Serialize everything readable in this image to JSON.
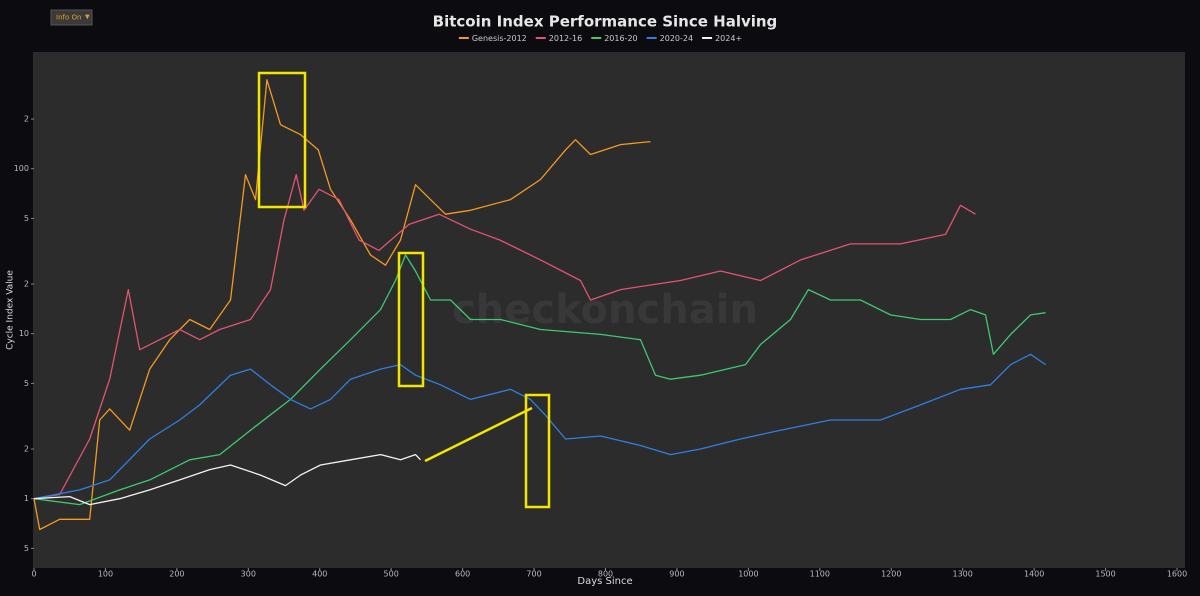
{
  "button": "Info On",
  "chart_data": {
    "type": "line",
    "title": "Bitcoin Index Performance Since Halving",
    "watermark": "checkonchain",
    "xlabel": "Days Since",
    "ylabel": "Cycle Index Value",
    "yscale": "log",
    "xlim": [
      0,
      1600
    ],
    "xticks": [
      0,
      100,
      200,
      300,
      400,
      500,
      600,
      700,
      800,
      900,
      1000,
      1100,
      1200,
      1300,
      1400,
      1500,
      1600
    ],
    "ylim": [
      0.38,
      510
    ],
    "yticks": [
      {
        "value": 0.5,
        "label": "5"
      },
      1,
      2,
      5,
      10,
      {
        "value": 20,
        "label": "2"
      },
      {
        "value": 50,
        "label": "5"
      },
      100,
      {
        "value": 200,
        "label": "2"
      }
    ],
    "series": [
      {
        "name": "Genesis-2012",
        "color": "#f39a1f",
        "x": [
          0,
          8,
          36,
          78,
          92,
          106,
          134,
          162,
          190,
          218,
          246,
          275,
          296,
          310,
          326,
          345,
          373,
          398,
          415,
          443,
          471,
          492,
          513,
          534,
          555,
          576,
          611,
          667,
          709,
          744,
          758,
          779,
          821,
          863
        ],
        "values": [
          1,
          0.65,
          0.75,
          0.75,
          3.0,
          3.5,
          2.6,
          6.1,
          9.2,
          12.2,
          10.6,
          16,
          92,
          65,
          346,
          185,
          161,
          130,
          75,
          49,
          30,
          26,
          37,
          80,
          65,
          53,
          56,
          65,
          86,
          130,
          150,
          122,
          140,
          146
        ]
      },
      {
        "name": "2012-16",
        "color": "#e2546f",
        "x": [
          0,
          36,
          78,
          106,
          132,
          148,
          176,
          204,
          232,
          260,
          303,
          331,
          350,
          367,
          378,
          399,
          427,
          455,
          483,
          525,
          567,
          611,
          652,
          709,
          765,
          779,
          821,
          905,
          961,
          1017,
          1073,
          1143,
          1213,
          1276,
          1297,
          1318
        ],
        "values": [
          1,
          1.06,
          2.3,
          5.3,
          18.5,
          8.0,
          9.2,
          10.6,
          9.2,
          10.6,
          12.2,
          18.5,
          49,
          92,
          56,
          75,
          65,
          37,
          32,
          46,
          53,
          43,
          37,
          28,
          21,
          16,
          18.5,
          21,
          24,
          21,
          28,
          35,
          35,
          40,
          60,
          53
        ]
      },
      {
        "name": "2016-20",
        "color": "#3ec970",
        "x": [
          0,
          64,
          120,
          162,
          218,
          260,
          303,
          359,
          401,
          443,
          485,
          506,
          520,
          534,
          555,
          583,
          611,
          653,
          709,
          793,
          849,
          870,
          891,
          933,
          996,
          1017,
          1059,
          1084,
          1115,
          1157,
          1199,
          1241,
          1283,
          1311,
          1332,
          1343,
          1367,
          1395,
          1416
        ],
        "values": [
          1,
          0.92,
          1.13,
          1.3,
          1.72,
          1.85,
          2.6,
          4.0,
          6.1,
          9.2,
          14,
          21,
          30,
          24,
          16,
          16,
          12.2,
          12.2,
          10.6,
          9.9,
          9.2,
          5.6,
          5.3,
          5.6,
          6.5,
          8.6,
          12.2,
          18.5,
          16,
          16,
          13,
          12.2,
          12.2,
          14,
          13,
          7.5,
          9.9,
          13,
          13.4
        ]
      },
      {
        "name": "2020-24",
        "color": "#2f7fe2",
        "x": [
          0,
          64,
          106,
          162,
          204,
          232,
          275,
          303,
          331,
          359,
          387,
          415,
          443,
          485,
          513,
          534,
          569,
          611,
          667,
          695,
          716,
          744,
          793,
          849,
          891,
          933,
          989,
          1045,
          1115,
          1185,
          1241,
          1297,
          1339,
          1367,
          1395,
          1416
        ],
        "values": [
          1,
          1.13,
          1.3,
          2.3,
          3.0,
          3.7,
          5.6,
          6.1,
          4.9,
          4.0,
          3.5,
          4.0,
          5.3,
          6.1,
          6.5,
          5.6,
          4.9,
          4.0,
          4.6,
          4.0,
          3.2,
          2.3,
          2.4,
          2.1,
          1.85,
          2.0,
          2.3,
          2.6,
          3.0,
          3.0,
          3.7,
          4.6,
          4.9,
          6.5,
          7.5,
          6.5
        ]
      },
      {
        "name": "2024+",
        "color": "#f2f2f2",
        "x": [
          0,
          50,
          78,
          120,
          162,
          204,
          246,
          275,
          317,
          352,
          373,
          401,
          443,
          485,
          513,
          534,
          541
        ],
        "values": [
          1,
          1.03,
          0.92,
          1,
          1.13,
          1.3,
          1.5,
          1.6,
          1.39,
          1.2,
          1.39,
          1.6,
          1.72,
          1.85,
          1.72,
          1.85,
          1.72
        ]
      }
    ]
  }
}
